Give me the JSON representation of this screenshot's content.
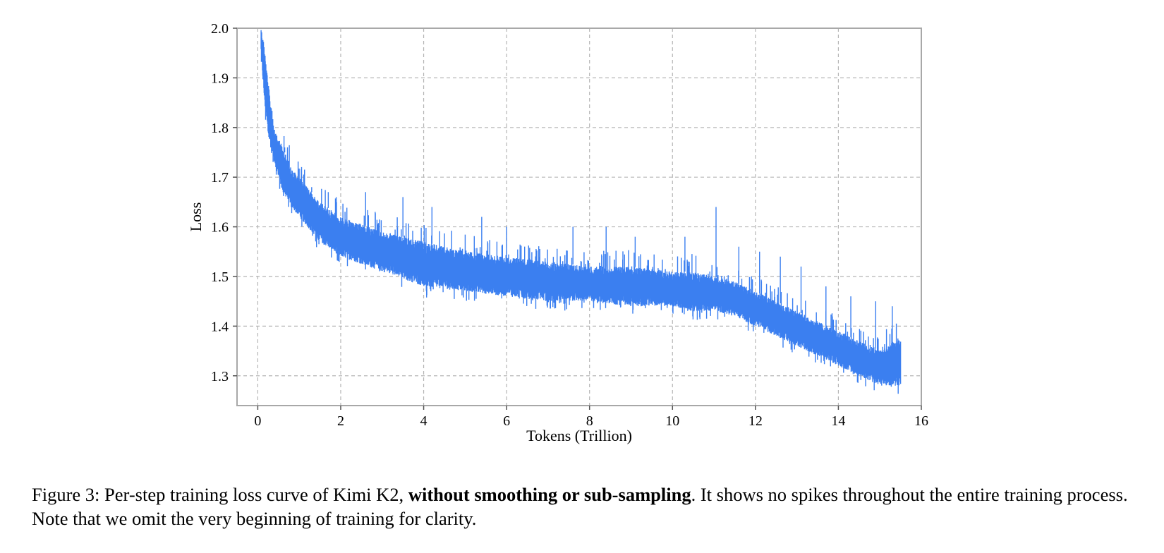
{
  "chart_data": {
    "type": "line",
    "xlabel": "Tokens (Trillion)",
    "ylabel": "Loss",
    "xlim": [
      -0.5,
      16
    ],
    "ylim": [
      1.24,
      2.0
    ],
    "x_ticks": [
      0,
      2,
      4,
      6,
      8,
      10,
      12,
      14,
      16
    ],
    "y_ticks": [
      1.3,
      1.4,
      1.5,
      1.6,
      1.7,
      1.8,
      1.9,
      2.0
    ],
    "grid": true,
    "series_color": "#3b7ff0",
    "trend": {
      "x": [
        0.08,
        0.15,
        0.25,
        0.4,
        0.6,
        0.8,
        1.0,
        1.5,
        2.0,
        3.0,
        4.0,
        5.0,
        6.0,
        7.0,
        8.0,
        9.0,
        10.0,
        10.5,
        11.0,
        11.5,
        12.0,
        12.5,
        13.0,
        13.5,
        14.0,
        14.5,
        15.0,
        15.5
      ],
      "y_low": [
        1.95,
        1.86,
        1.78,
        1.73,
        1.67,
        1.64,
        1.62,
        1.57,
        1.54,
        1.51,
        1.48,
        1.47,
        1.46,
        1.45,
        1.45,
        1.44,
        1.44,
        1.43,
        1.43,
        1.42,
        1.4,
        1.38,
        1.36,
        1.34,
        1.32,
        1.3,
        1.28,
        1.28
      ],
      "y_high": [
        2.0,
        1.97,
        1.89,
        1.8,
        1.76,
        1.72,
        1.7,
        1.65,
        1.62,
        1.59,
        1.57,
        1.55,
        1.54,
        1.53,
        1.52,
        1.52,
        1.51,
        1.51,
        1.5,
        1.49,
        1.47,
        1.45,
        1.43,
        1.41,
        1.39,
        1.37,
        1.35,
        1.38
      ]
    },
    "spikes": [
      [
        0.45,
        1.79
      ],
      [
        0.65,
        1.76
      ],
      [
        0.9,
        1.71
      ],
      [
        1.3,
        1.68
      ],
      [
        1.7,
        1.67
      ],
      [
        2.6,
        1.67
      ],
      [
        3.5,
        1.66
      ],
      [
        4.2,
        1.64
      ],
      [
        5.4,
        1.62
      ],
      [
        6.0,
        1.6
      ],
      [
        7.6,
        1.6
      ],
      [
        8.4,
        1.6
      ],
      [
        9.1,
        1.58
      ],
      [
        10.3,
        1.58
      ],
      [
        11.05,
        1.64
      ],
      [
        11.6,
        1.56
      ],
      [
        12.1,
        1.55
      ],
      [
        12.6,
        1.54
      ],
      [
        13.1,
        1.52
      ],
      [
        13.7,
        1.48
      ],
      [
        14.3,
        1.46
      ],
      [
        14.9,
        1.45
      ],
      [
        15.3,
        1.44
      ]
    ]
  },
  "caption": {
    "prefix": "Figure 3: Per-step training loss curve of Kimi K2, ",
    "bold": "without smoothing or sub-sampling",
    "suffix": ". It shows no spikes throughout the entire training process. Note that we omit the very beginning of training for clarity."
  }
}
